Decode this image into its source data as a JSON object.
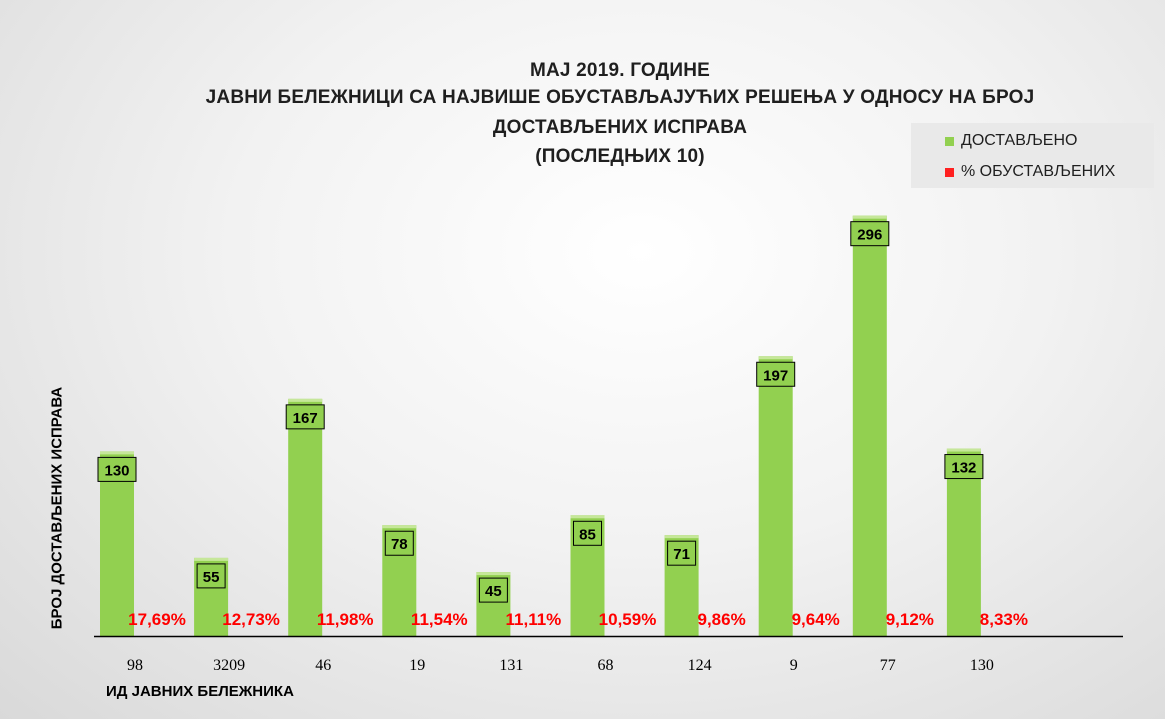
{
  "chart_data": {
    "type": "bar",
    "title_lines": [
      "МАЈ 2019. ГОДИНЕ",
      "ЈАВНИ БЕЛЕЖНИЦИ СА НАЈВИШЕ ОБУСТАВЉАЈУЋИХ РЕШЕЊА У ОДНОСУ НА БРОЈ",
      "ДОСТАВЉЕНИХ ИСПРАВА",
      "(ПОСЛЕДЊИХ 10)"
    ],
    "xlabel": "ИД ЈАВНИХ БЕЛЕЖНИКА",
    "ylabel": "БРОЈ ДОСТАВЉЕНИХ ИСПРАВА",
    "categories": [
      "98",
      "3209",
      "46",
      "19",
      "131",
      "68",
      "124",
      "9",
      "77",
      "130"
    ],
    "series": [
      {
        "name": "ДОСТАВЉЕНО",
        "color": "#92d050",
        "values": [
          130,
          55,
          167,
          78,
          45,
          85,
          71,
          197,
          296,
          132
        ]
      },
      {
        "name": "% ОБУСТАВЉЕНИХ",
        "color": "#ff0000",
        "labels": [
          "17,69%",
          "12,73%",
          "11,98%",
          "11,54%",
          "11,11%",
          "10,59%",
          "9,86%",
          "9,64%",
          "9,12%",
          "8,33%"
        ]
      }
    ],
    "ylim": [
      0,
      300
    ],
    "grid": false,
    "legend_position": "top-right"
  }
}
